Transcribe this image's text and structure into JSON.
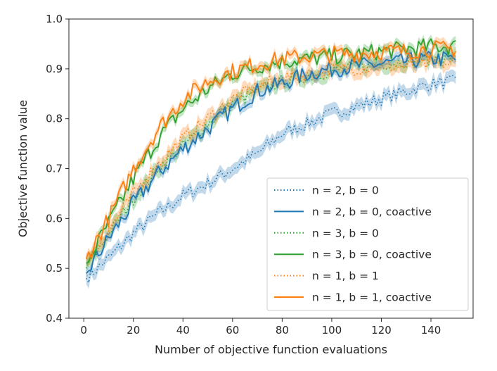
{
  "chart_data": {
    "type": "line",
    "title": "",
    "xlabel": "Number of objective function evaluations",
    "ylabel": "Objective function value",
    "xlim": [
      -6,
      157
    ],
    "ylim": [
      0.4,
      1.0
    ],
    "xticks": [
      0,
      20,
      40,
      60,
      80,
      100,
      120,
      140
    ],
    "yticks": [
      0.4,
      0.5,
      0.6,
      0.7,
      0.8,
      0.9,
      1.0
    ],
    "ytick_labels": [
      "0.4",
      "0.5",
      "0.6",
      "0.7",
      "0.8",
      "0.9",
      "1.0"
    ],
    "grid": false,
    "legend_position": "lower-right",
    "x": [
      1,
      10,
      20,
      30,
      40,
      50,
      60,
      70,
      80,
      90,
      100,
      110,
      120,
      130,
      140,
      150
    ],
    "series": [
      {
        "name": "n = 2, b = 0",
        "style": "dotted",
        "color": "#1f77b4",
        "values": [
          0.48,
          0.52,
          0.57,
          0.61,
          0.645,
          0.67,
          0.7,
          0.73,
          0.77,
          0.79,
          0.81,
          0.825,
          0.84,
          0.855,
          0.87,
          0.875
        ]
      },
      {
        "name": "n = 2, b = 0, coactive",
        "style": "solid",
        "color": "#1f77b4",
        "values": [
          0.49,
          0.56,
          0.63,
          0.69,
          0.74,
          0.78,
          0.82,
          0.855,
          0.87,
          0.89,
          0.9,
          0.905,
          0.91,
          0.915,
          0.92,
          0.92
        ]
      },
      {
        "name": "n = 3, b = 0",
        "style": "dotted",
        "color": "#2ca02c",
        "values": [
          0.5,
          0.57,
          0.64,
          0.7,
          0.745,
          0.79,
          0.83,
          0.855,
          0.875,
          0.885,
          0.895,
          0.905,
          0.91,
          0.915,
          0.92,
          0.925
        ]
      },
      {
        "name": "n = 3, b = 0, coactive",
        "style": "solid",
        "color": "#2ca02c",
        "values": [
          0.51,
          0.59,
          0.68,
          0.76,
          0.82,
          0.86,
          0.89,
          0.905,
          0.915,
          0.92,
          0.925,
          0.93,
          0.935,
          0.94,
          0.945,
          0.945
        ]
      },
      {
        "name": "n = 1, b = 1",
        "style": "dotted",
        "color": "#ff7f0e",
        "values": [
          0.52,
          0.575,
          0.65,
          0.71,
          0.76,
          0.8,
          0.84,
          0.865,
          0.88,
          0.89,
          0.9,
          0.9,
          0.905,
          0.905,
          0.91,
          0.91
        ]
      },
      {
        "name": "n = 1, b = 1, coactive",
        "style": "solid",
        "color": "#ff7f0e",
        "values": [
          0.52,
          0.6,
          0.7,
          0.78,
          0.84,
          0.875,
          0.895,
          0.91,
          0.92,
          0.925,
          0.93,
          0.93,
          0.935,
          0.935,
          0.94,
          0.94
        ]
      }
    ]
  }
}
